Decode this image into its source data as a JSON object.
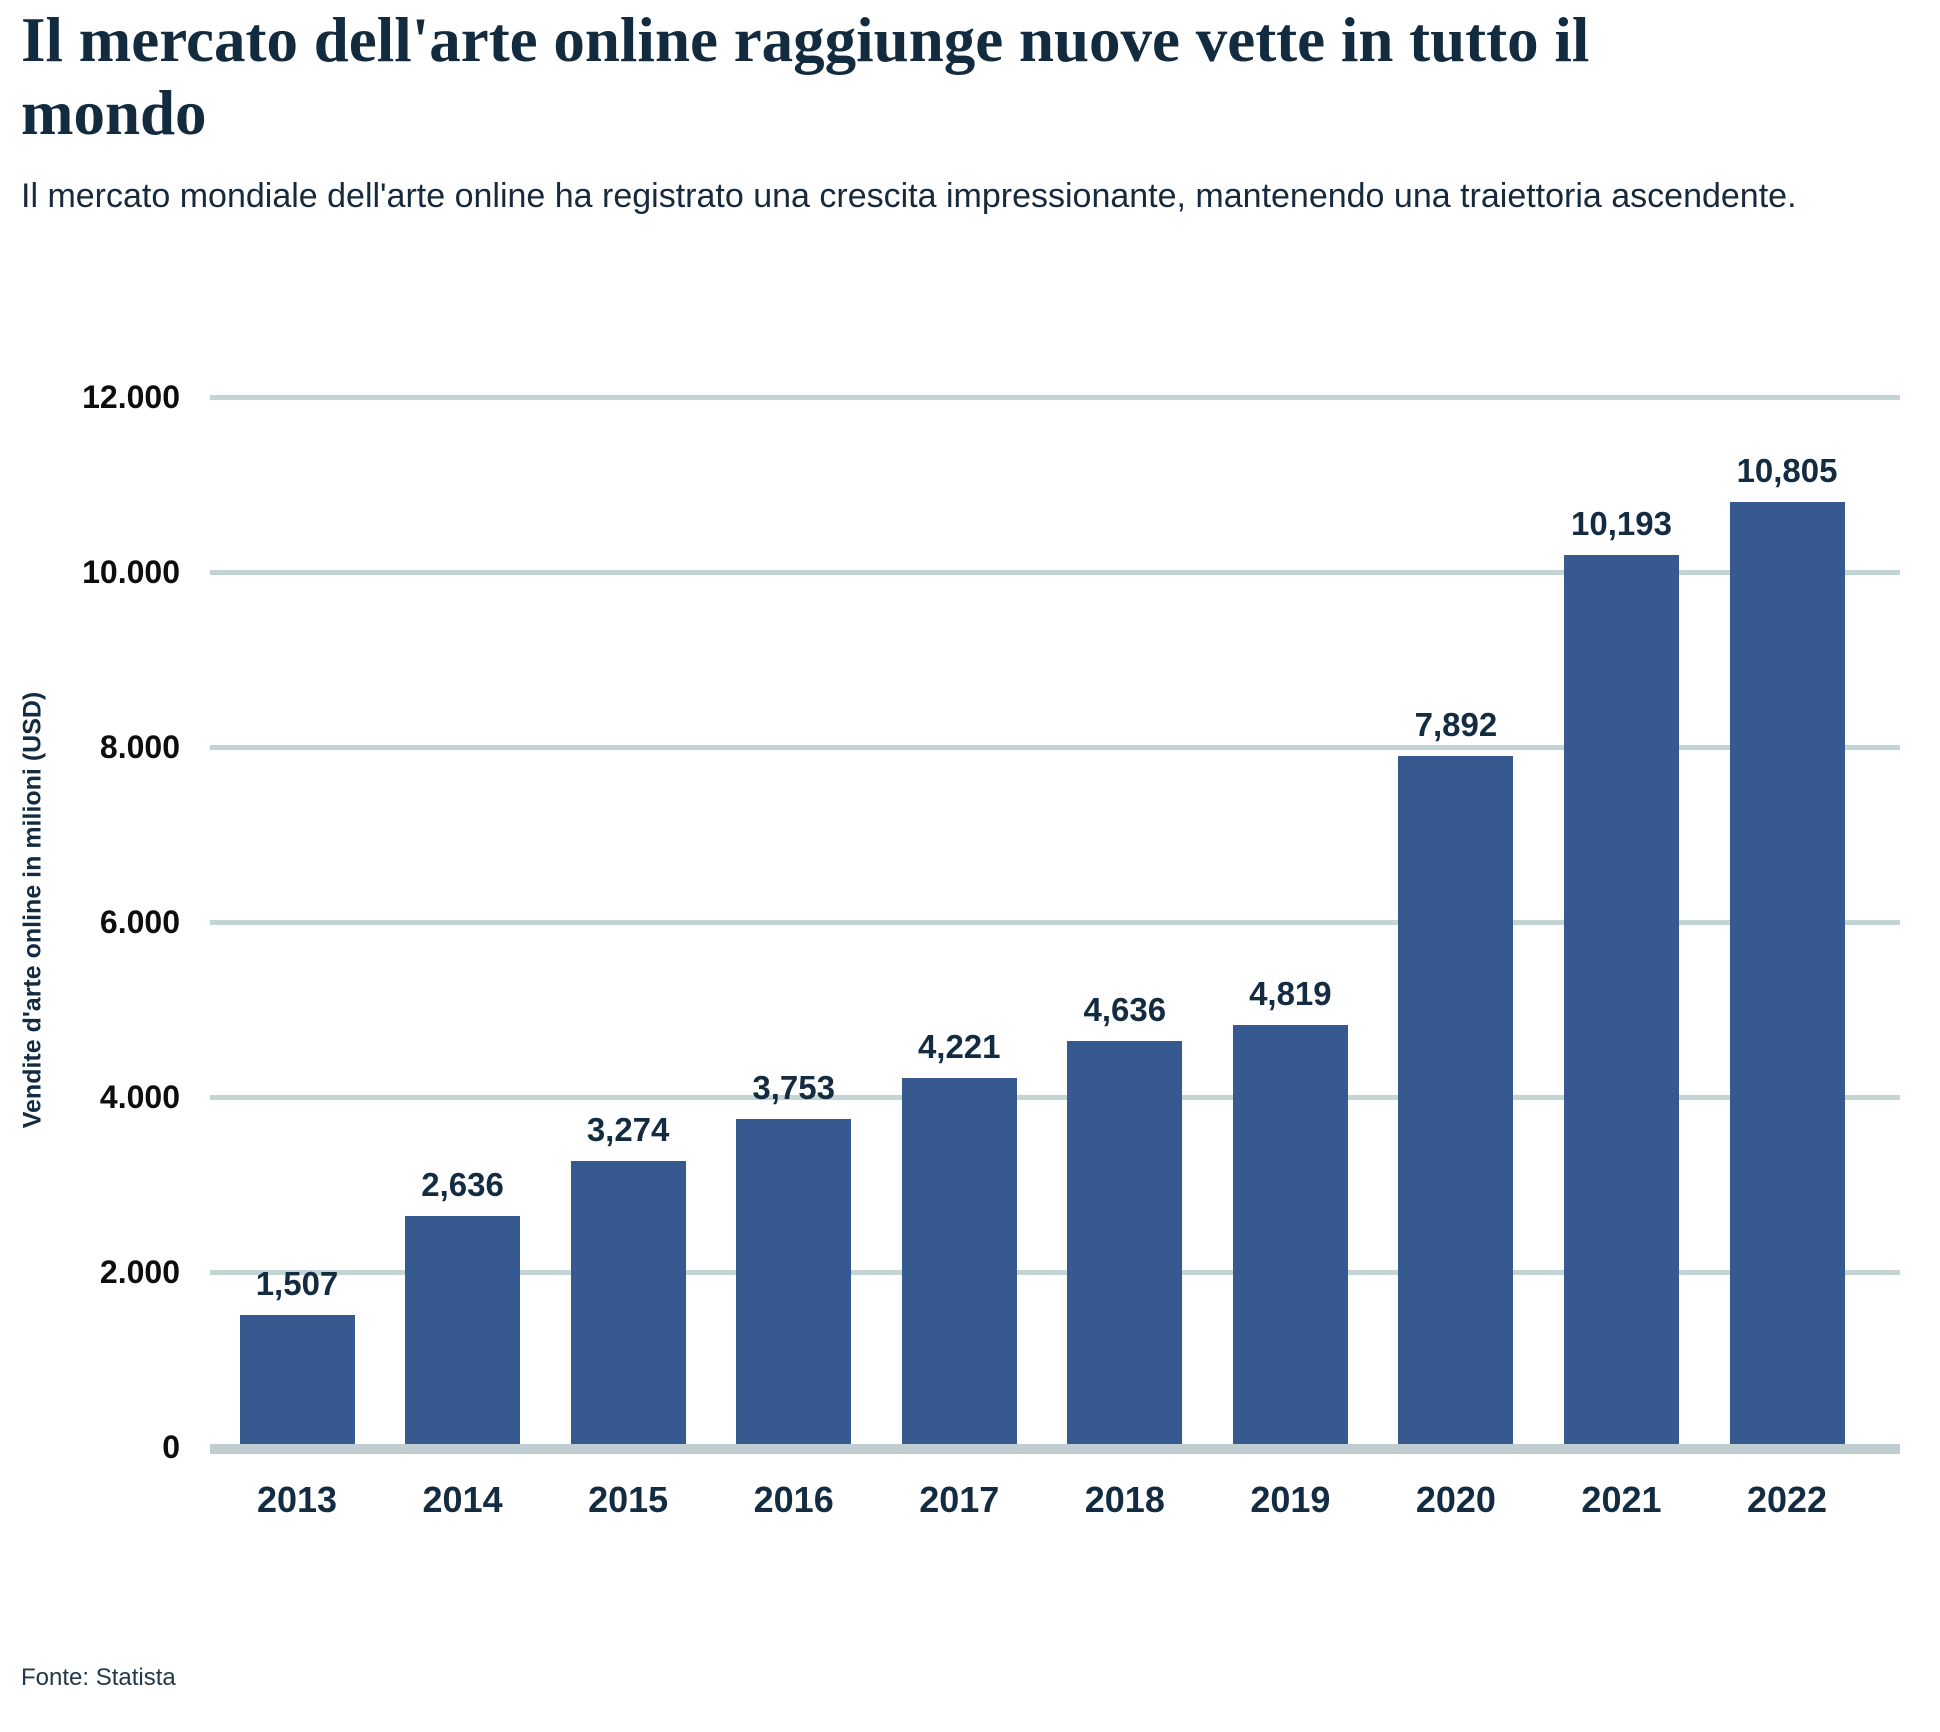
{
  "header": {
    "title": "Il mercato dell'arte online raggiunge nuove vette in tutto il mondo",
    "subtitle": "Il mercato mondiale dell'arte online ha registrato una crescita impressionante, mantenendo una traiettoria ascendente."
  },
  "footer": {
    "source": "Fonte: Statista"
  },
  "chart_data": {
    "type": "bar",
    "title": "Il mercato dell'arte online raggiunge nuove vette in tutto il mondo",
    "categories": [
      "2013",
      "2014",
      "2015",
      "2016",
      "2017",
      "2018",
      "2019",
      "2020",
      "2021",
      "2022"
    ],
    "values": [
      1507,
      2636,
      3274,
      3753,
      4221,
      4636,
      4819,
      7892,
      10193,
      10805
    ],
    "value_labels": [
      "1,507",
      "2,636",
      "3,274",
      "3,753",
      "4,221",
      "4,636",
      "4,819",
      "7,892",
      "10,193",
      "10,805"
    ],
    "xlabel": "",
    "ylabel": "Vendite d'arte online in milioni (USD)",
    "ylim": [
      0,
      12000
    ],
    "ytick_interval": 2000,
    "ytick_labels": [
      "0",
      "2.000",
      "4.000",
      "6.000",
      "8.000",
      "10.000",
      "12.000"
    ],
    "grid": true,
    "legend": false,
    "colors": {
      "bar": "#36598f",
      "gridline": "#c3d4d4",
      "axis_line": "#c1ced1",
      "title_text": "#132b3f",
      "subtitle_text": "#17293b",
      "data_label_text": "#142c42",
      "tick_text": "#0c0e10",
      "source_text": "#22384c"
    }
  }
}
